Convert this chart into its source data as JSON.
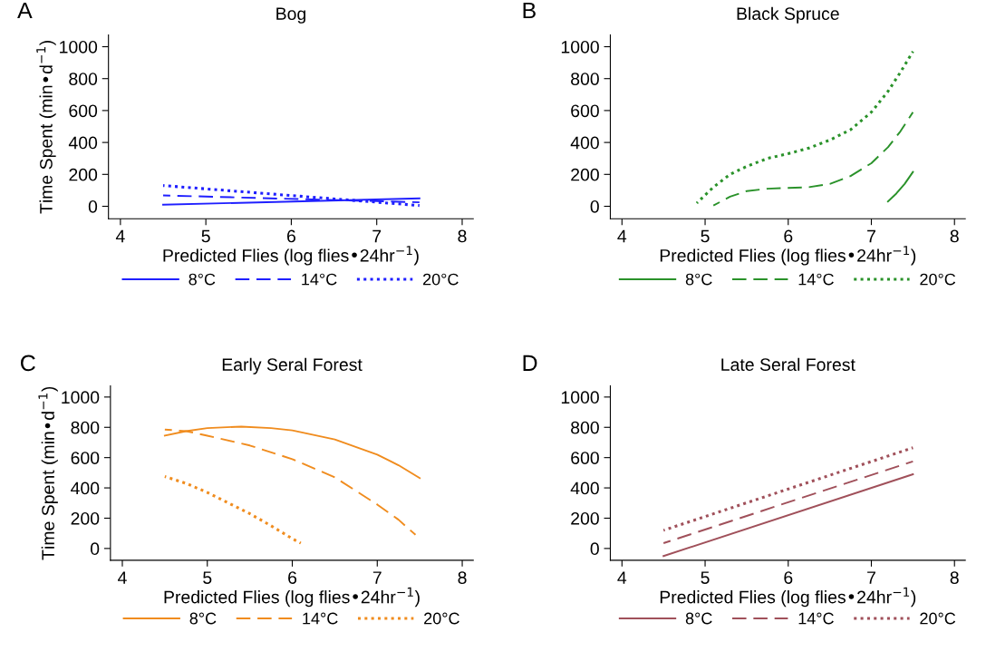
{
  "chart_data": [
    {
      "type": "line",
      "title": "Bog",
      "xlabel": "Predicted Flies (log flies•24hr$^{−1}$)",
      "ylabel": "Time Spent (min•d$^{−1}$)",
      "annotations": [
        "A"
      ],
      "xlim": [
        3.86,
        8.13
      ],
      "xticks": [
        4,
        5,
        6,
        7,
        8
      ],
      "ylim": [
        -78,
        1074
      ],
      "yticks": [
        0,
        200,
        400,
        600,
        800,
        1000
      ],
      "grid": false,
      "legend": "bottom",
      "series": [
        {
          "name": "8°C",
          "color": "#1f1fff",
          "line_style": "solid",
          "x": [
            4.5,
            7.5
          ],
          "values": [
            10,
            50
          ]
        },
        {
          "name": "14°C",
          "color": "#1f1fff",
          "line_style": "dashed",
          "x": [
            4.5,
            7.5
          ],
          "values": [
            68,
            25
          ]
        },
        {
          "name": "20°C",
          "color": "#1f1fff",
          "line_style": "dotted",
          "x": [
            4.5,
            7.5
          ],
          "values": [
            130,
            5
          ]
        }
      ]
    },
    {
      "type": "line",
      "title": "Black Spruce",
      "xlabel": "Predicted Flies (log flies•24hr$^{−1}$)",
      "annotations": [
        "B"
      ],
      "xlim": [
        3.86,
        8.13
      ],
      "xticks": [
        4,
        5,
        6,
        7,
        8
      ],
      "ylim": [
        -78,
        1074
      ],
      "yticks": [
        0,
        200,
        400,
        600,
        800,
        1000
      ],
      "grid": false,
      "legend": "bottom",
      "series": [
        {
          "name": "8°C",
          "color": "#2a922a",
          "line_style": "solid",
          "x": [
            7.2,
            7.3,
            7.4,
            7.5
          ],
          "values": [
            30,
            80,
            140,
            215
          ]
        },
        {
          "name": "14°C",
          "color": "#2a922a",
          "line_style": "dashed",
          "x": [
            5.1,
            5.3,
            5.5,
            5.75,
            6,
            6.25,
            6.5,
            6.75,
            7,
            7.2,
            7.35,
            7.5
          ],
          "values": [
            5,
            60,
            95,
            110,
            115,
            120,
            140,
            190,
            270,
            370,
            470,
            590
          ]
        },
        {
          "name": "20°C",
          "color": "#2a922a",
          "line_style": "dotted",
          "x": [
            4.9,
            5.1,
            5.3,
            5.5,
            5.75,
            6,
            6.25,
            6.5,
            6.75,
            7,
            7.2,
            7.35,
            7.5
          ],
          "values": [
            20,
            120,
            200,
            250,
            300,
            330,
            365,
            415,
            480,
            590,
            720,
            840,
            970
          ]
        }
      ]
    },
    {
      "type": "line",
      "title": "Early Seral Forest",
      "xlabel": "Predicted Flies (log flies•24hr$^{−1}$)",
      "ylabel": "Time Spent (min•d$^{−1}$)",
      "annotations": [
        "C"
      ],
      "xlim": [
        3.86,
        8.13
      ],
      "xticks": [
        4,
        5,
        6,
        7,
        8
      ],
      "ylim": [
        -78,
        1074
      ],
      "yticks": [
        0,
        200,
        400,
        600,
        800,
        1000
      ],
      "grid": false,
      "legend": "bottom",
      "series": [
        {
          "name": "8°C",
          "color": "#f08c1e",
          "line_style": "solid",
          "x": [
            4.5,
            4.75,
            5,
            5.4,
            5.75,
            6,
            6.5,
            7,
            7.25,
            7.5
          ],
          "values": [
            745,
            775,
            795,
            805,
            795,
            780,
            720,
            620,
            550,
            465
          ]
        },
        {
          "name": "14°C",
          "color": "#f08c1e",
          "line_style": "dashed",
          "x": [
            4.5,
            4.75,
            5,
            5.5,
            6,
            6.5,
            7,
            7.25,
            7.45
          ],
          "values": [
            785,
            775,
            745,
            680,
            590,
            470,
            290,
            190,
            90
          ]
        },
        {
          "name": "20°C",
          "color": "#f08c1e",
          "line_style": "dotted",
          "x": [
            4.5,
            4.75,
            5,
            5.25,
            5.5,
            5.75,
            6,
            6.1
          ],
          "values": [
            475,
            430,
            370,
            300,
            230,
            150,
            65,
            35
          ]
        }
      ]
    },
    {
      "type": "line",
      "title": "Late Seral Forest",
      "xlabel": "Predicted Flies (log flies•24hr$^{−1}$)",
      "annotations": [
        "D"
      ],
      "xlim": [
        3.86,
        8.13
      ],
      "xticks": [
        4,
        5,
        6,
        7,
        8
      ],
      "ylim": [
        -78,
        1074
      ],
      "yticks": [
        0,
        200,
        400,
        600,
        800,
        1000
      ],
      "grid": false,
      "legend": "bottom",
      "series": [
        {
          "name": "8°C",
          "color": "#a0505a",
          "line_style": "solid",
          "x": [
            4.5,
            7.5
          ],
          "values": [
            -50,
            490
          ]
        },
        {
          "name": "14°C",
          "color": "#a0505a",
          "line_style": "dashed",
          "x": [
            4.5,
            7.5
          ],
          "values": [
            35,
            575
          ]
        },
        {
          "name": "20°C",
          "color": "#a0505a",
          "line_style": "dotted",
          "x": [
            4.5,
            7.5
          ],
          "values": [
            120,
            665
          ]
        }
      ]
    }
  ]
}
